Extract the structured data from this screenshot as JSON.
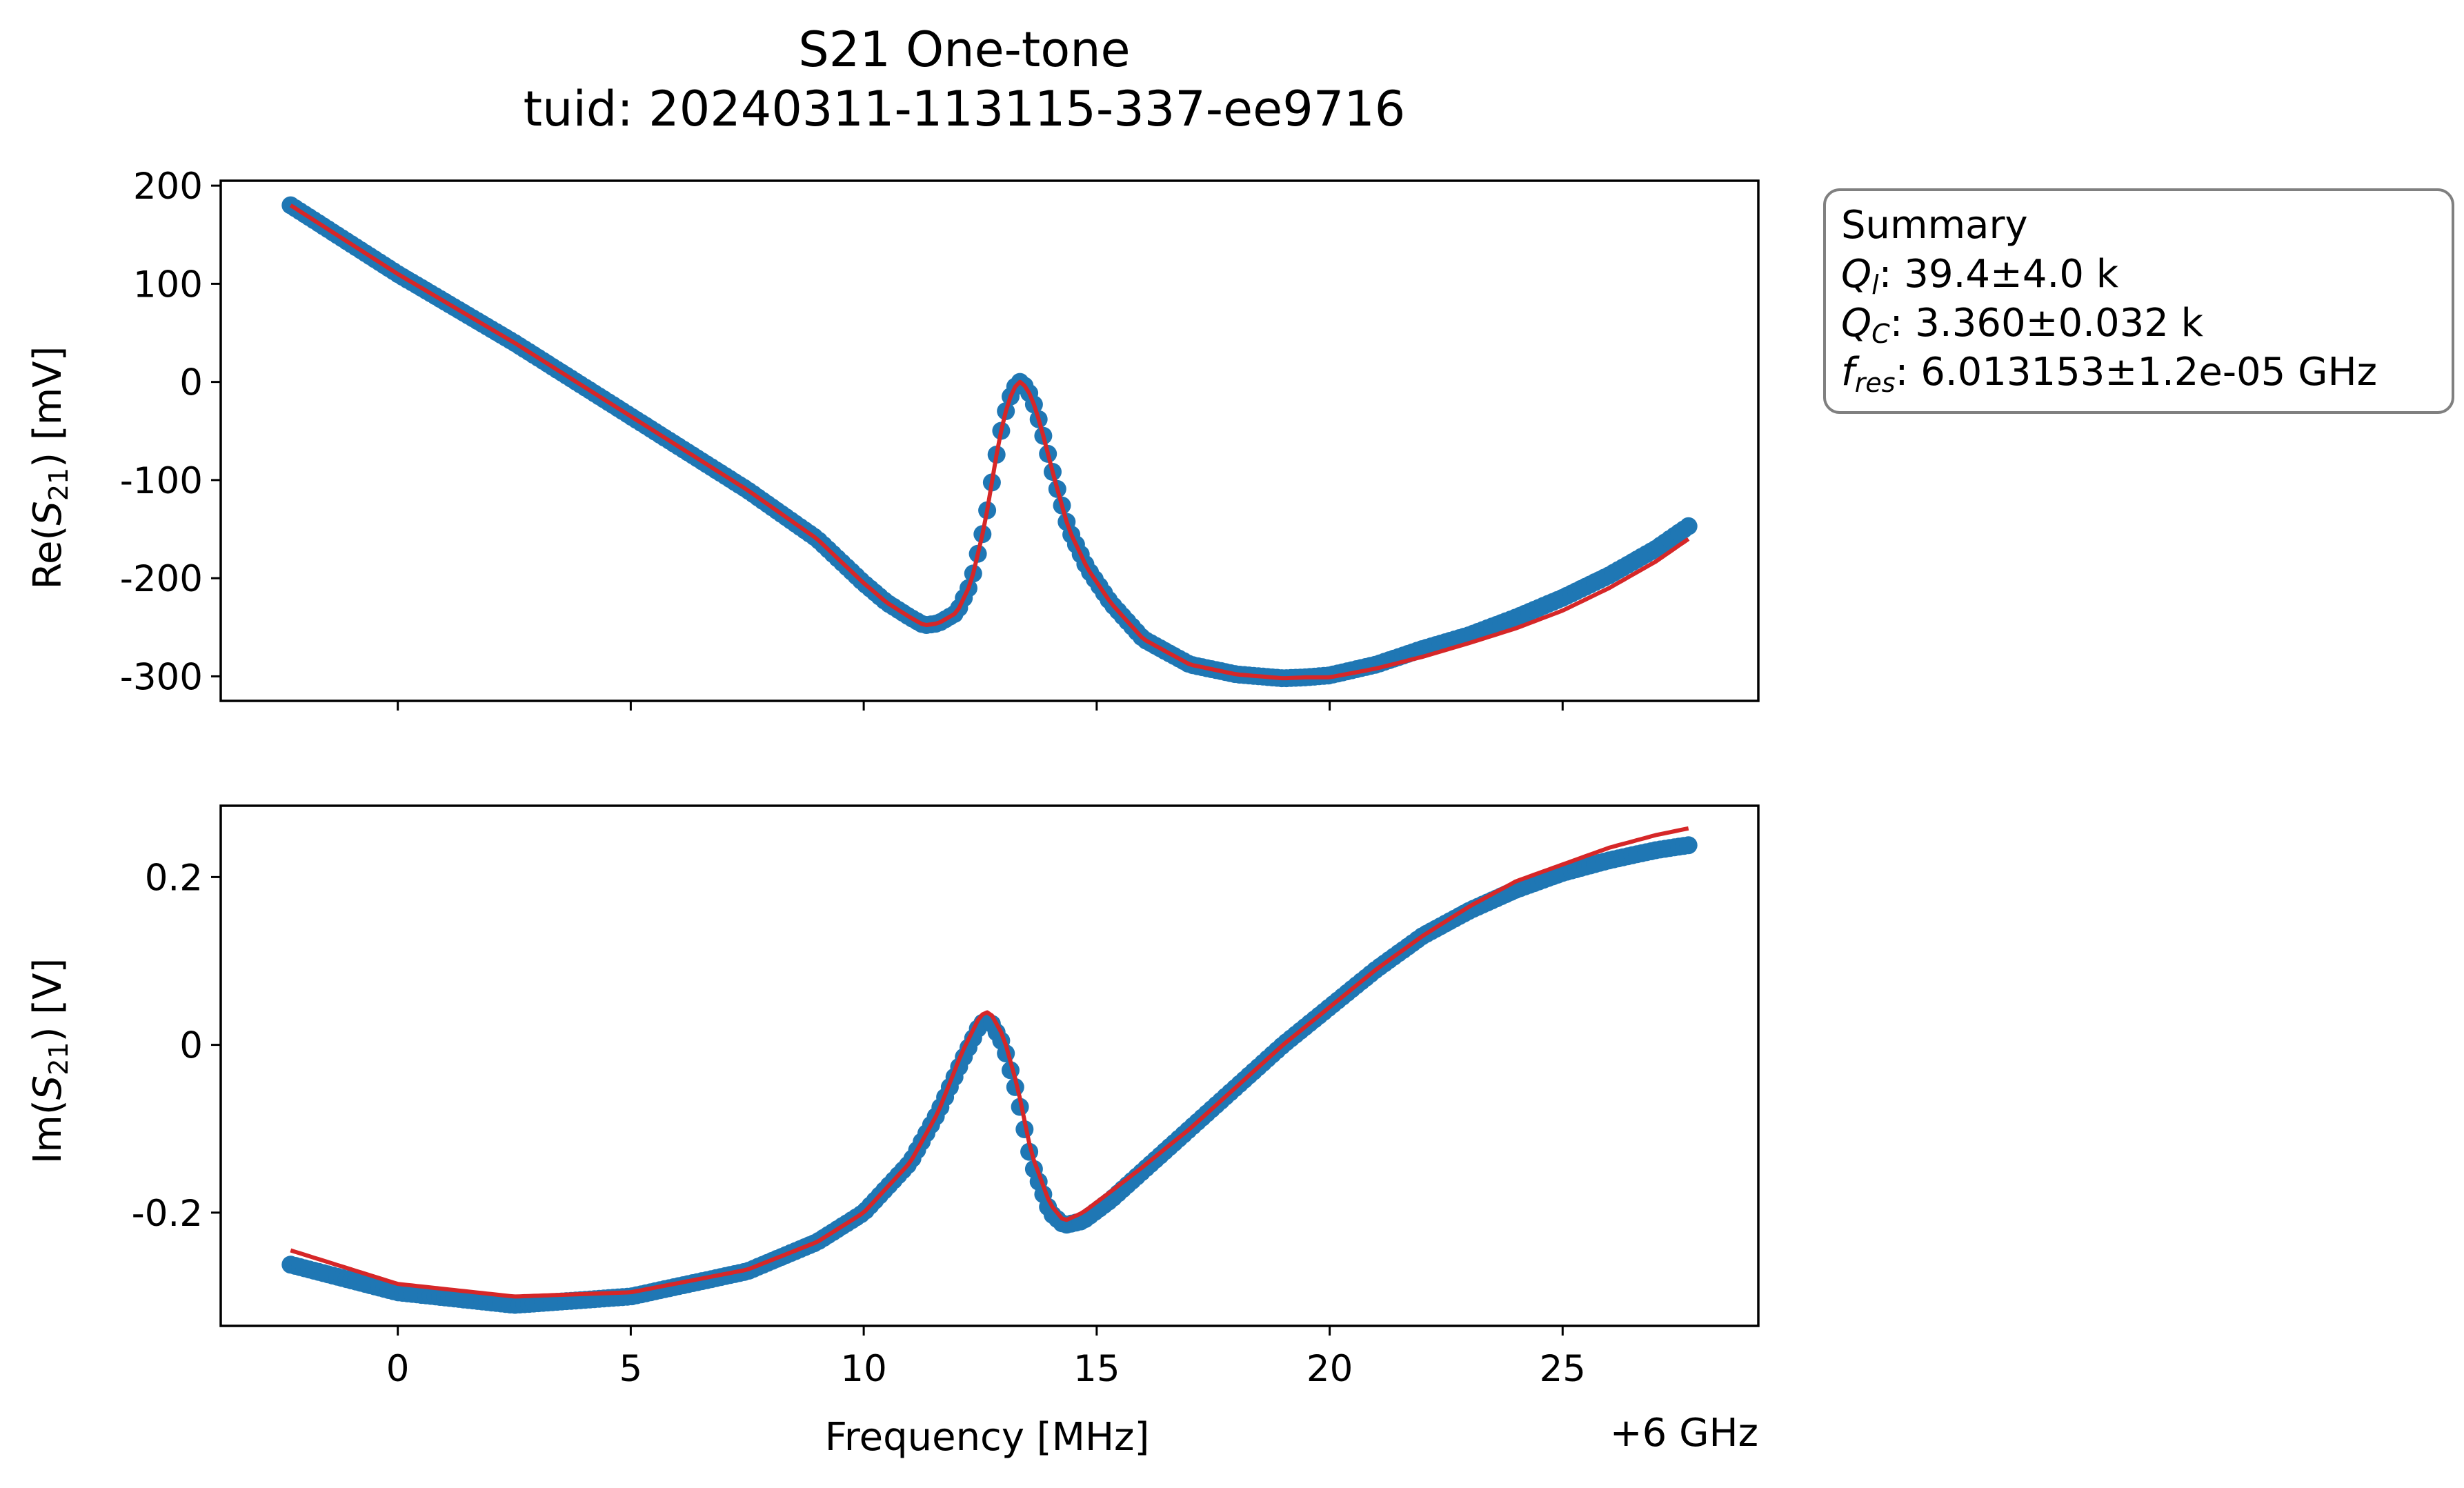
{
  "title": "S21 One-tone",
  "subtitle": "tuid: 20240311-113115-337-ee9716",
  "summary": {
    "heading": "Summary",
    "ql_value": ": 39.4±4.0 k",
    "qc_value": ": 3.360±0.032 k",
    "fres_value": ": 6.013153±1.2e-05 GHz"
  },
  "colors": {
    "data": "#1f77b4",
    "fit": "#d62728",
    "legend_edge": "#808080"
  },
  "chart_data": [
    {
      "type": "scatter",
      "panel": "top",
      "ylabel": "Re(S21) [mV]",
      "xlim": [
        -3.8,
        29.2
      ],
      "ylim": [
        -325,
        205
      ],
      "x_ticks": [
        0,
        5,
        10,
        15,
        20,
        25
      ],
      "y_ticks": [
        200,
        100,
        0,
        -100,
        -200,
        -300
      ],
      "y_tick_labels": [
        "200",
        "100",
        "0",
        "-100",
        "-200",
        "-300"
      ],
      "x_range": [
        -2.3,
        27.7
      ],
      "n_points": 300,
      "series": [
        {
          "role": "data",
          "x": [
            -2.3,
            0,
            2.5,
            5,
            7.5,
            9,
            10,
            10.5,
            11,
            11.3,
            11.6,
            12,
            12.3,
            12.6,
            12.9,
            13.1,
            13.3,
            13.4,
            13.6,
            13.8,
            14.1,
            14.4,
            14.8,
            15.3,
            16,
            17,
            18,
            19,
            19.5,
            20,
            21,
            22,
            23,
            24,
            25,
            26,
            27,
            27.7
          ],
          "y": [
            180,
            110,
            40,
            -35,
            -110,
            -160,
            -205,
            -225,
            -240,
            -248,
            -246,
            -235,
            -205,
            -145,
            -60,
            -20,
            0,
            0,
            -15,
            -45,
            -100,
            -150,
            -190,
            -225,
            -262,
            -288,
            -298,
            -302,
            -301,
            -299,
            -288,
            -272,
            -258,
            -240,
            -220,
            -197,
            -170,
            -147
          ]
        },
        {
          "role": "fit",
          "x": [
            -2.3,
            0,
            2.5,
            5,
            7.5,
            9,
            10,
            10.5,
            11,
            11.3,
            11.6,
            12,
            12.3,
            12.6,
            12.9,
            13.1,
            13.3,
            13.4,
            13.6,
            13.8,
            14.1,
            14.4,
            14.8,
            15.3,
            16,
            17,
            18,
            19,
            19.5,
            20,
            21,
            22,
            23,
            24,
            25,
            26,
            27,
            27.7
          ],
          "y": [
            180,
            110,
            40,
            -35,
            -110,
            -160,
            -205,
            -225,
            -240,
            -248,
            -246,
            -235,
            -205,
            -145,
            -60,
            -20,
            0,
            0,
            -15,
            -45,
            -100,
            -150,
            -190,
            -225,
            -262,
            -288,
            -298,
            -302,
            -301,
            -301,
            -292,
            -280,
            -266,
            -251,
            -233,
            -210,
            -183,
            -160
          ]
        }
      ]
    },
    {
      "type": "scatter",
      "panel": "bottom",
      "ylabel": "Im(S21) [V]",
      "xlabel": "Frequency [MHz]",
      "x_offset_label": "+6 GHz",
      "xlim": [
        -3.8,
        29.2
      ],
      "ylim": [
        -0.335,
        0.285
      ],
      "x_ticks": [
        0,
        5,
        10,
        15,
        20,
        25
      ],
      "x_tick_labels": [
        "0",
        "5",
        "10",
        "15",
        "20",
        "25"
      ],
      "y_ticks": [
        0.2,
        0,
        -0.2
      ],
      "y_tick_labels": [
        "0.2",
        "0",
        "-0.2"
      ],
      "x_range": [
        -2.3,
        27.7
      ],
      "n_points": 300,
      "series": [
        {
          "role": "data",
          "x": [
            -2.3,
            0,
            2.5,
            5,
            7.5,
            9,
            10,
            11,
            11.6,
            12.1,
            12.5,
            12.7,
            13,
            13.3,
            13.6,
            14,
            14.3,
            14.7,
            15.3,
            16,
            17,
            18,
            19,
            20,
            21,
            22,
            23,
            24,
            25,
            26,
            27,
            27.7
          ],
          "y": [
            -0.262,
            -0.295,
            -0.31,
            -0.3,
            -0.27,
            -0.235,
            -0.2,
            -0.14,
            -0.08,
            -0.02,
            0.025,
            0.03,
            0,
            -0.06,
            -0.14,
            -0.2,
            -0.215,
            -0.21,
            -0.185,
            -0.15,
            -0.1,
            -0.05,
            0,
            0.045,
            0.09,
            0.13,
            0.16,
            0.185,
            0.205,
            0.22,
            0.232,
            0.238
          ]
        },
        {
          "role": "fit",
          "x": [
            -2.3,
            0,
            2.5,
            5,
            7.5,
            9,
            10,
            11,
            11.6,
            12.1,
            12.5,
            12.7,
            13,
            13.3,
            13.6,
            14,
            14.3,
            14.7,
            15.3,
            16,
            17,
            18,
            19,
            20,
            21,
            22,
            23,
            24,
            25,
            26,
            27,
            27.7
          ],
          "y": [
            -0.245,
            -0.285,
            -0.3,
            -0.295,
            -0.268,
            -0.235,
            -0.2,
            -0.14,
            -0.08,
            -0.01,
            0.035,
            0.04,
            0.01,
            -0.05,
            -0.13,
            -0.19,
            -0.21,
            -0.2,
            -0.175,
            -0.145,
            -0.1,
            -0.05,
            0,
            0.045,
            0.09,
            0.13,
            0.165,
            0.195,
            0.215,
            0.235,
            0.25,
            0.258
          ]
        }
      ]
    }
  ]
}
